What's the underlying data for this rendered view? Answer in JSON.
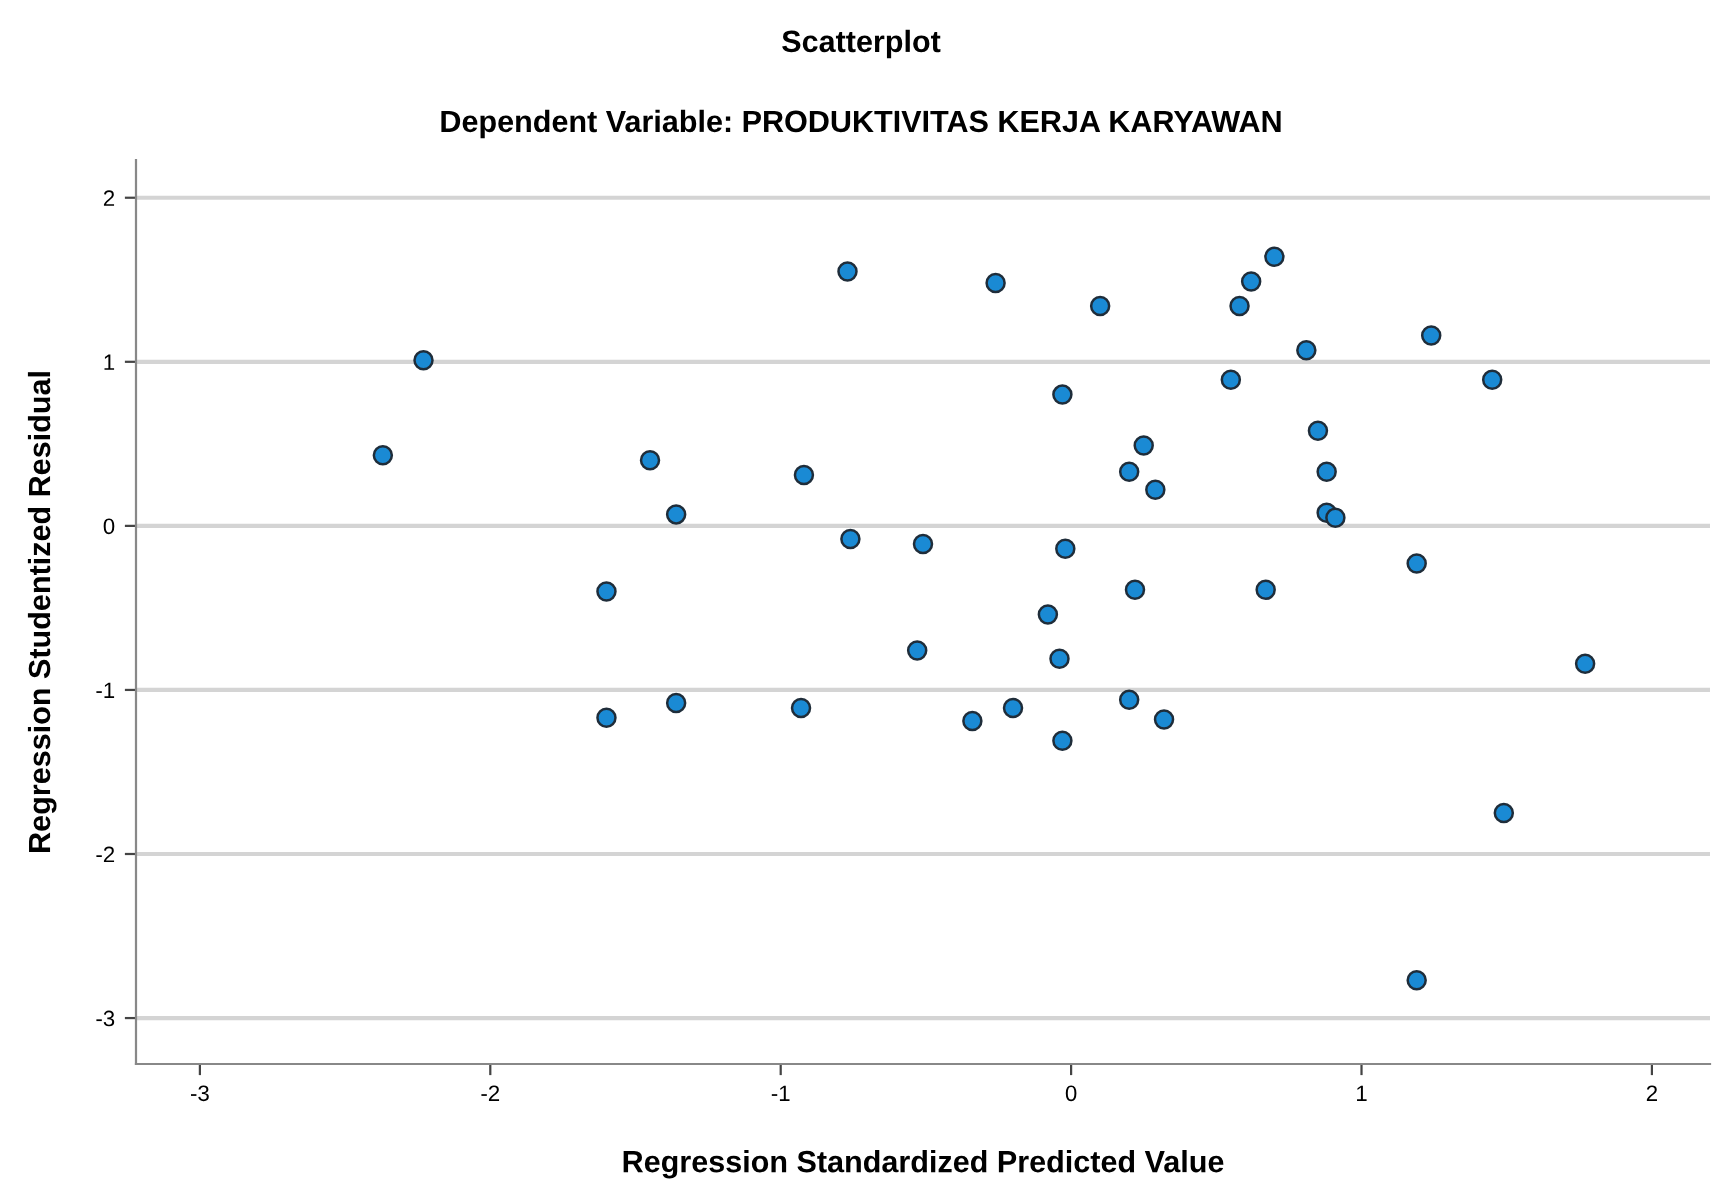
{
  "chart_data": {
    "type": "scatter",
    "title": "Scatterplot",
    "subtitle": "Dependent Variable: PRODUKTIVITAS KERJA KARYAWAN",
    "xlabel": "Regression Standardized Predicted Value",
    "ylabel": "Regression Studentized Residual",
    "xlim": [
      -3.22,
      2.2
    ],
    "ylim": [
      -3.28,
      2.23
    ],
    "xticks": [
      -3,
      -2,
      -1,
      0,
      1,
      2
    ],
    "yticks": [
      -3,
      -2,
      -1,
      0,
      1,
      2
    ],
    "grid": "y",
    "marker": "circle",
    "legend": false,
    "series": [
      {
        "color": "#1a8ad4",
        "x": [
          -0.26,
          0.1,
          0.58,
          0.62,
          0.7,
          0.81,
          1.24,
          0.55,
          1.45,
          -0.03,
          0.25,
          0.85,
          0.2,
          0.29,
          0.88,
          0.88,
          0.91,
          -0.51,
          -0.02,
          1.19,
          0.22,
          0.67,
          -0.08,
          -0.53,
          -0.04,
          1.77,
          0.2,
          -0.2,
          -0.34,
          0.32,
          -0.03,
          1.49,
          1.19,
          -0.77,
          -2.23,
          -2.37,
          -1.45,
          -0.92,
          -1.36,
          -0.76,
          -1.6,
          -1.6,
          -1.36,
          -0.93
        ],
        "values": [
          1.48,
          1.34,
          1.34,
          1.49,
          1.64,
          1.07,
          1.16,
          0.89,
          0.89,
          0.8,
          0.49,
          0.58,
          0.33,
          0.22,
          0.33,
          0.08,
          0.05,
          -0.11,
          -0.14,
          -0.23,
          -0.39,
          -0.39,
          -0.54,
          -0.76,
          -0.81,
          -0.84,
          -1.06,
          -1.11,
          -1.19,
          -1.18,
          -1.31,
          -1.75,
          -2.77,
          1.55,
          1.01,
          0.43,
          0.4,
          0.31,
          0.07,
          -0.08,
          -0.4,
          -1.17,
          -1.08,
          -1.11
        ]
      }
    ]
  }
}
